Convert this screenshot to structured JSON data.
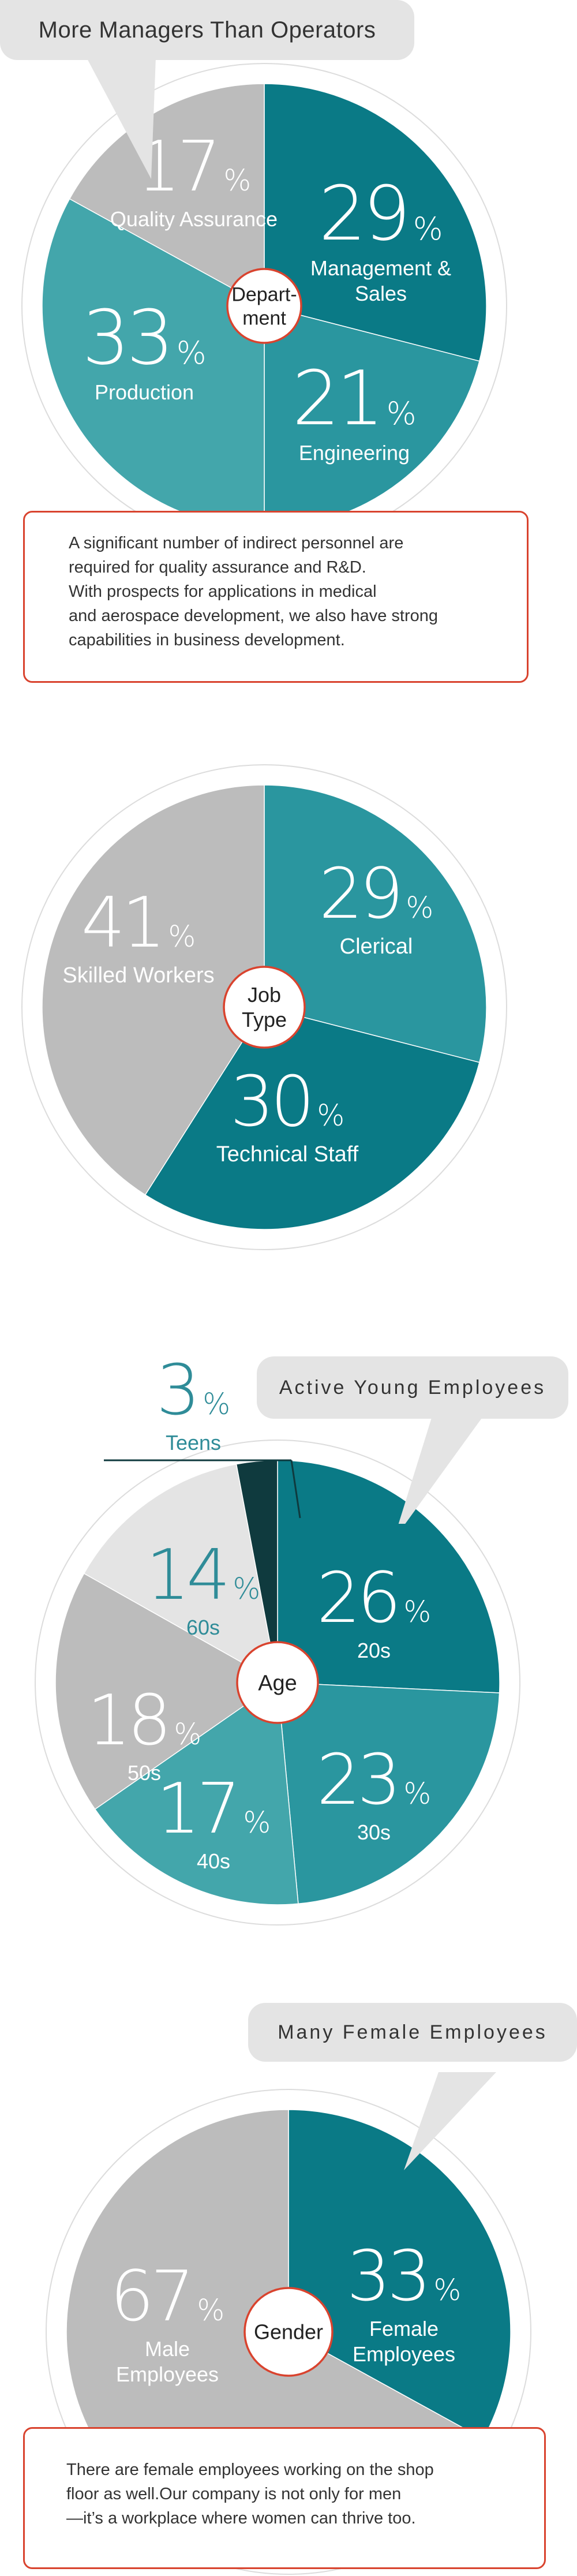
{
  "colors": {
    "teal_dark": "#0a7a86",
    "teal_mid": "#2a969f",
    "teal_light": "#43a6ab",
    "gray": "#bcbcbc",
    "gray_light": "#e4e4e4",
    "teen": "#0f3a3e",
    "accent_red": "#d9432e",
    "label_white": "#ffffff",
    "label_teal": "#2f8c98"
  },
  "section1": {
    "bubble": "More Managers Than Operators",
    "note_lines": [
      "A significant number of indirect personnel are",
      "required for quality assurance and R&D.",
      "With prospects for applications in medical",
      "and aerospace development, we also have strong",
      "capabilities in business development."
    ]
  },
  "section3": {
    "bubble": "Active Young Employees"
  },
  "section4": {
    "bubble": "Many Female Employees",
    "note_lines": [
      "There are female employees working on the shop",
      "floor as well.Our company is not only for men",
      "—it’s a workplace where women can thrive too."
    ]
  },
  "chart_data": [
    {
      "type": "pie",
      "title": "More Managers Than Operators",
      "center_label": [
        "Depart-",
        "ment"
      ],
      "unit": "%",
      "categories": [
        "Management & Sales",
        "Engineering",
        "Production",
        "Quality Assurance"
      ],
      "values": [
        29,
        21,
        33,
        17
      ],
      "slices": [
        {
          "label": [
            "Management &",
            "Sales"
          ],
          "value": 29,
          "color": "#0a7a86"
        },
        {
          "label": [
            "Engineering"
          ],
          "value": 21,
          "color": "#2a969f"
        },
        {
          "label": [
            "Production"
          ],
          "value": 33,
          "color": "#43a6ab"
        },
        {
          "label": [
            "Quality Assurance"
          ],
          "value": 17,
          "color": "#bcbcbc"
        }
      ]
    },
    {
      "type": "pie",
      "center_label": [
        "Job",
        "Type"
      ],
      "unit": "%",
      "categories": [
        "Clerical",
        "Technical Staff",
        "Skilled Workers"
      ],
      "values": [
        29,
        30,
        41
      ],
      "slices": [
        {
          "label": [
            "Clerical"
          ],
          "value": 29,
          "color": "#2a969f"
        },
        {
          "label": [
            "Technical Staff"
          ],
          "value": 30,
          "color": "#0a7a86"
        },
        {
          "label": [
            "Skilled Workers"
          ],
          "value": 41,
          "color": "#bcbcbc"
        }
      ]
    },
    {
      "type": "pie",
      "title": "Active Young Employees",
      "center_label": [
        "Age"
      ],
      "unit": "%",
      "categories": [
        "20s",
        "30s",
        "40s",
        "50s",
        "60s",
        "Teens"
      ],
      "values": [
        26,
        23,
        17,
        18,
        14,
        3
      ],
      "slices": [
        {
          "label": [
            "20s"
          ],
          "value": 26,
          "color": "#0a7a86"
        },
        {
          "label": [
            "30s"
          ],
          "value": 23,
          "color": "#2a969f"
        },
        {
          "label": [
            "40s"
          ],
          "value": 17,
          "color": "#43a6ab"
        },
        {
          "label": [
            "50s"
          ],
          "value": 18,
          "color": "#bcbcbc"
        },
        {
          "label": [
            "60s"
          ],
          "value": 14,
          "color": "#e4e4e4"
        },
        {
          "label": [
            "Teens"
          ],
          "value": 3,
          "color": "#0f3a3e"
        }
      ]
    },
    {
      "type": "pie",
      "title": "Many Female Employees",
      "center_label": [
        "Gender"
      ],
      "unit": "%",
      "categories": [
        "Female Employees",
        "Male Employees"
      ],
      "values": [
        33,
        67
      ],
      "slices": [
        {
          "label": [
            "Female",
            "Employees"
          ],
          "value": 33,
          "color": "#0a7a86"
        },
        {
          "label": [
            "Male",
            "Employees"
          ],
          "value": 67,
          "color": "#bcbcbc"
        }
      ]
    }
  ]
}
